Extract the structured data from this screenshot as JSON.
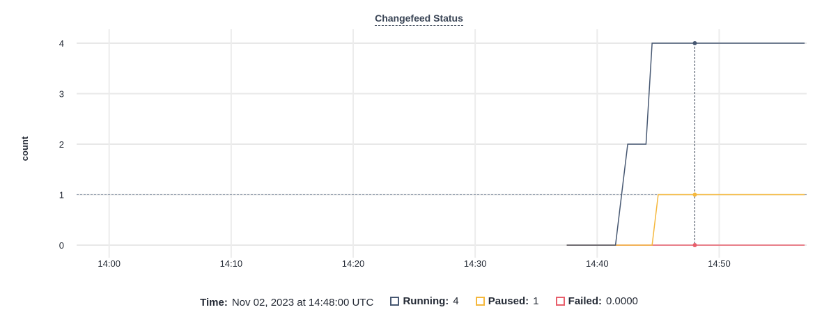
{
  "chart_data": {
    "type": "line",
    "title": "Changefeed Status",
    "ylabel": "count",
    "xlabel": "",
    "ylim": [
      0,
      4
    ],
    "yticks": [
      "0",
      "1",
      "2",
      "3",
      "4"
    ],
    "xlim": [
      "13:57:20",
      "14:57:10"
    ],
    "xticks": [
      "14:00",
      "14:10",
      "14:20",
      "14:30",
      "14:40",
      "14:50"
    ],
    "grid": true,
    "step": true,
    "series": [
      {
        "name": "Running",
        "color": "#475872",
        "points": [
          [
            "14:37:30",
            0
          ],
          [
            "14:41:30",
            0
          ],
          [
            "14:42:30",
            2
          ],
          [
            "14:44:00",
            2
          ],
          [
            "14:44:30",
            4
          ],
          [
            "14:57:00",
            4
          ]
        ]
      },
      {
        "name": "Paused",
        "color": "#f5b83d",
        "points": [
          [
            "14:37:30",
            0
          ],
          [
            "14:44:30",
            0
          ],
          [
            "14:45:00",
            1
          ],
          [
            "14:57:00",
            1
          ]
        ]
      },
      {
        "name": "Failed",
        "color": "#e85e6b",
        "points": [
          [
            "14:37:30",
            0
          ],
          [
            "14:57:00",
            0
          ]
        ]
      }
    ],
    "hover": {
      "time": "14:48:00",
      "reference_y": 1
    }
  },
  "legend": {
    "time_label": "Time:",
    "time_value": "Nov 02, 2023 at 14:48:00 UTC",
    "items": [
      {
        "label": "Running:",
        "value": "4",
        "color": "#475872"
      },
      {
        "label": "Paused:",
        "value": "1",
        "color": "#f5b83d"
      },
      {
        "label": "Failed:",
        "value": "0.0000",
        "color": "#e85e6b"
      }
    ]
  }
}
